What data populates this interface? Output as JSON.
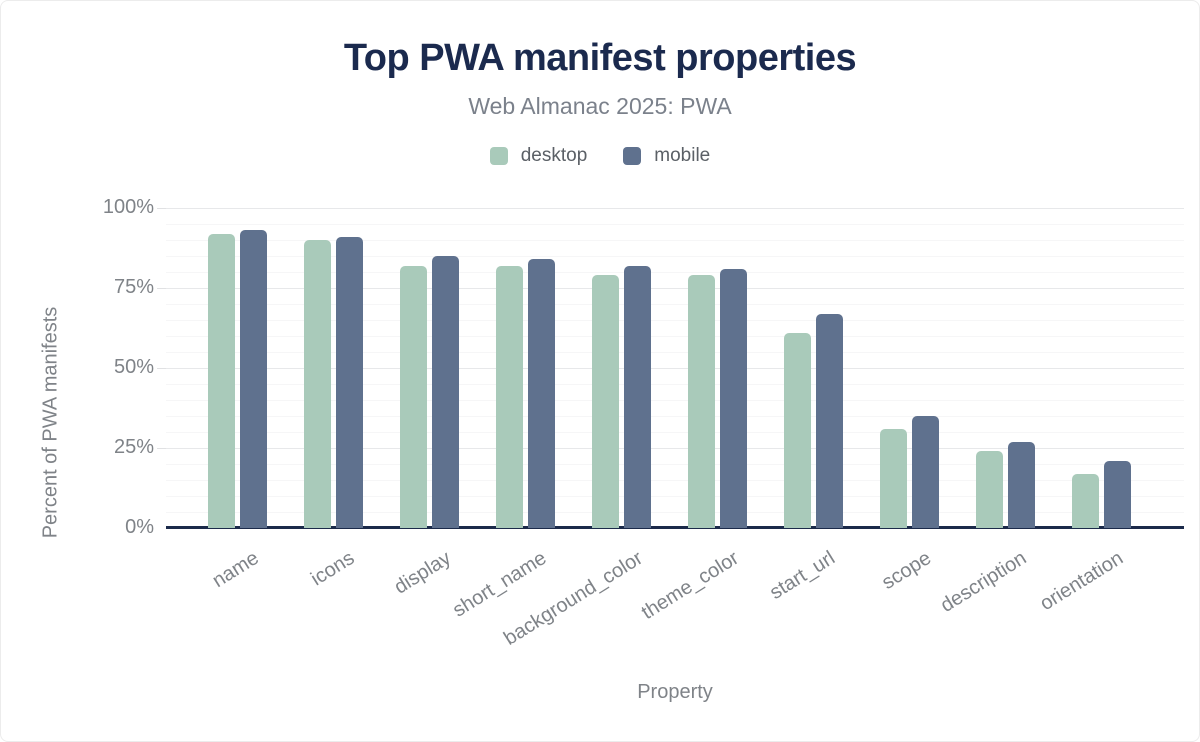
{
  "chart_data": {
    "type": "bar",
    "title": "Top PWA manifest properties",
    "subtitle": "Web Almanac 2025: PWA",
    "xlabel": "Property",
    "ylabel": "Percent of PWA manifests",
    "ylim": [
      0,
      100
    ],
    "ytick_labels": [
      "0%",
      "25%",
      "50%",
      "75%",
      "100%"
    ],
    "ytick_values": [
      0,
      25,
      50,
      75,
      100
    ],
    "grid": true,
    "legend_position": "top",
    "categories": [
      "name",
      "icons",
      "display",
      "short_name",
      "background_color",
      "theme_color",
      "start_url",
      "scope",
      "description",
      "orientation"
    ],
    "series": [
      {
        "name": "desktop",
        "color": "#a9caba",
        "values": [
          92,
          90,
          82,
          82,
          79,
          79,
          61,
          31,
          24,
          17
        ]
      },
      {
        "name": "mobile",
        "color": "#5f718e",
        "values": [
          93,
          91,
          85,
          84,
          82,
          81,
          67,
          35,
          27,
          21
        ]
      }
    ]
  },
  "colors": {
    "title": "#1b2a4e",
    "subtitle": "#7b818b",
    "axis_line": "#1b2a4a",
    "axis_text": "#7f8388",
    "grid_major": "#e7e8ea",
    "grid_minor": "#f6f6f7",
    "background": "#ffffff"
  }
}
